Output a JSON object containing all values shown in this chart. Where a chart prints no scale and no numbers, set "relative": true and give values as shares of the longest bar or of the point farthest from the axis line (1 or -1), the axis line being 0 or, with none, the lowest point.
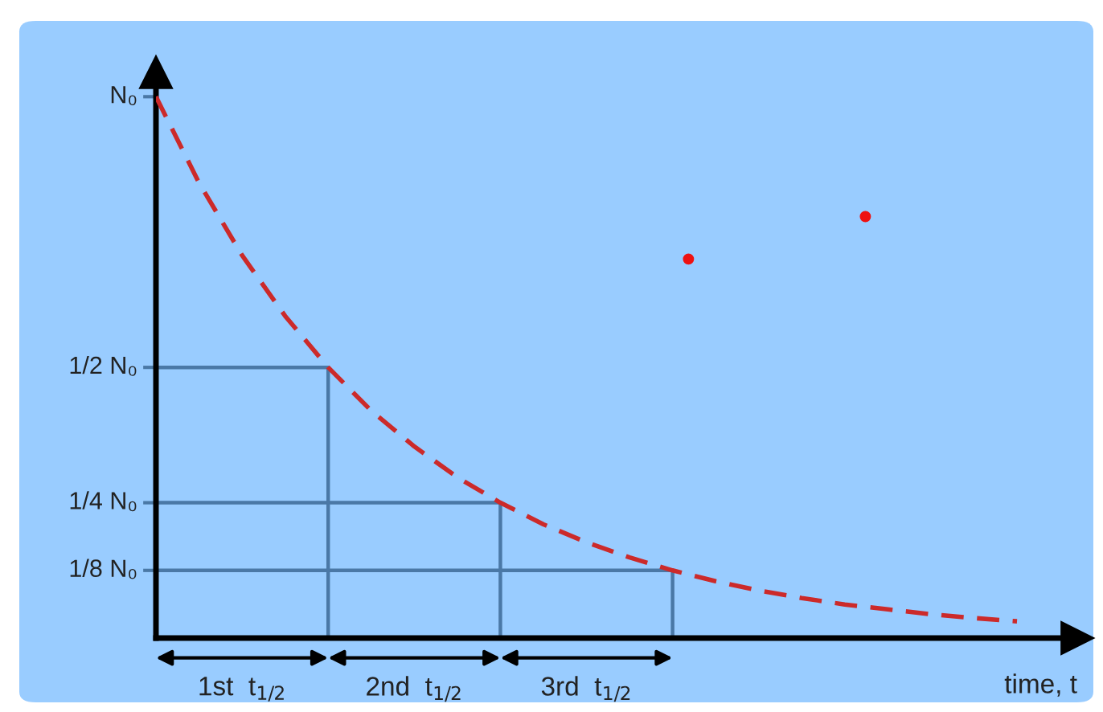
{
  "chart_data": {
    "type": "line",
    "xlabel": "time, t",
    "categories": [
      null,
      null,
      null,
      null,
      null,
      null,
      null,
      null,
      null,
      null,
      null,
      null,
      null,
      null,
      null,
      null,
      null,
      null,
      null,
      null,
      null
    ],
    "relative": true,
    "series": [
      {
        "color": "#cc2a2a",
        "line_style": "dashed",
        "values": [
          1,
          0.841,
          0.707,
          0.595,
          0.5,
          0.42,
          0.354,
          0.297,
          0.25,
          0.21,
          0.177,
          0.149,
          0.125,
          0.105,
          0.088,
          0.074,
          0.062,
          0.053,
          0.044,
          0.037,
          0.031
        ]
      }
    ],
    "annotations": [
      "N₀",
      "1/2 N₀",
      "1/4 N₀",
      "1/8 N₀",
      "1st  t$_{1/2}$",
      "2nd  t$_{1/2}$",
      "3rd  t$_{1/2}$"
    ],
    "grid": false
  }
}
